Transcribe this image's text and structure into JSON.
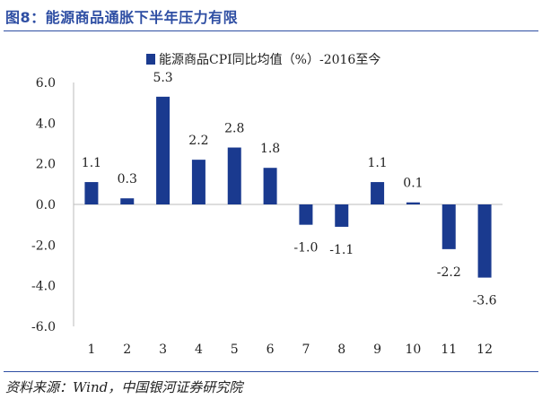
{
  "header": {
    "title": "图8：能源商品通胀下半年压力有限"
  },
  "footer": {
    "source": "资料来源：Wind，中国银河证券研究院"
  },
  "chart_data": {
    "type": "bar",
    "categories": [
      "1",
      "2",
      "3",
      "4",
      "5",
      "6",
      "7",
      "8",
      "9",
      "10",
      "11",
      "12"
    ],
    "series": [
      {
        "name": "能源商品CPI同比均值（%）-2016至今",
        "values": [
          1.1,
          0.3,
          5.3,
          2.2,
          2.8,
          1.8,
          -1.0,
          -1.1,
          1.1,
          0.1,
          -2.2,
          -3.6
        ]
      }
    ],
    "data_labels": [
      "1.1",
      "0.3",
      "5.3",
      "2.2",
      "2.8",
      "1.8",
      "-1.0",
      "-1.1",
      "1.1",
      "0.1",
      "-2.2",
      "-3.6"
    ],
    "yticks": [
      "6.0",
      "4.0",
      "2.0",
      "0.0",
      "-2.0",
      "-4.0",
      "-6.0"
    ],
    "ylim": [
      -6,
      6
    ],
    "legend_position": "top",
    "bar_color": "#1a3a8f",
    "title": "",
    "xlabel": "",
    "ylabel": ""
  }
}
